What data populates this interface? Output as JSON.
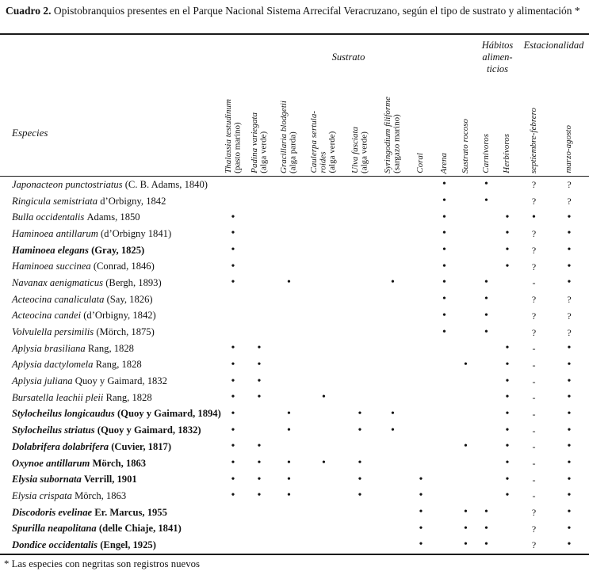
{
  "title": {
    "bold_label": "Cuadro 2.",
    "text": " Opistobranquios presentes en el Parque Nacional Sistema Arrecifal Veracruzano, según el tipo de sustrato y alimentación *"
  },
  "header": {
    "especies_label": "Especies",
    "groups": [
      {
        "id": "sustrato",
        "label": "Sustrato",
        "col_start": 2,
        "span": 9
      },
      {
        "id": "habitos",
        "label": "Hábitos\nalimen-\nticios",
        "col_start": 11,
        "span": 2
      },
      {
        "id": "estacionalidad",
        "label": "Estacionalidad",
        "col_start": 13,
        "span": 2
      }
    ],
    "columns": [
      {
        "id": "thalassia-testudinum",
        "sci_lines": [
          "Thalassia testudinum"
        ],
        "sub": "(pasto marino)"
      },
      {
        "id": "padina-variegata",
        "sci_lines": [
          "Padina variegata"
        ],
        "sub": "(alga verde)"
      },
      {
        "id": "gracillaria-blodgetii",
        "sci_lines": [
          "Gracillaria blodgetii"
        ],
        "sub": "(alga parda)"
      },
      {
        "id": "caulerpa-sertularoides",
        "sci_lines": [
          "Caulerpa sertula-",
          "roides"
        ],
        "sub": "(alga verde)"
      },
      {
        "id": "ulva-fasciata",
        "sci_lines": [
          "Ulva fasciata"
        ],
        "sub": "(alga verde)"
      },
      {
        "id": "syringodium-filiforme",
        "sci_lines": [
          "Syringodium filiforme"
        ],
        "sub": "(sargazo marino)"
      },
      {
        "id": "coral",
        "sci_lines": [
          "Coral"
        ],
        "sub": ""
      },
      {
        "id": "arena",
        "sci_lines": [
          "Arena"
        ],
        "sub": ""
      },
      {
        "id": "sustrato-rocoso",
        "sci_lines": [
          "Sustrato rocoso"
        ],
        "sub": ""
      },
      {
        "id": "carnivoros",
        "sci_lines": [
          "Carnívoros"
        ],
        "sub": ""
      },
      {
        "id": "herbivoros",
        "sci_lines": [
          "Herbívoros"
        ],
        "sub": ""
      },
      {
        "id": "septiembre-febrero",
        "sci_lines": [
          "septiembre-febrero"
        ],
        "sub": ""
      },
      {
        "id": "marzo-agosto",
        "sci_lines": [
          "marzo-agosto"
        ],
        "sub": ""
      }
    ]
  },
  "symbols": {
    "present": "•",
    "unknown": "?",
    "absent": "-"
  },
  "rows": [
    {
      "species": "Japonacteon punctostriatus",
      "authority": "(C. B. Adams, 1840)",
      "bold": false,
      "cells": [
        "",
        "",
        "",
        "",
        "",
        "",
        "",
        "•",
        "",
        "•",
        "",
        "?",
        "?"
      ]
    },
    {
      "species": "Ringicula semistriata",
      "authority": "d’Orbigny, 1842",
      "bold": false,
      "cells": [
        "",
        "",
        "",
        "",
        "",
        "",
        "",
        "•",
        "",
        "•",
        "",
        "?",
        "?"
      ]
    },
    {
      "species": "Bulla occidentalis",
      "authority": "Adams, 1850",
      "bold": false,
      "cells": [
        "•",
        "",
        "",
        "",
        "",
        "",
        "",
        "•",
        "",
        "",
        "•",
        "•",
        "•"
      ]
    },
    {
      "species": "Haminoea antillarum",
      "authority": "(d’Orbigny 1841)",
      "bold": false,
      "cells": [
        "•",
        "",
        "",
        "",
        "",
        "",
        "",
        "•",
        "",
        "",
        "•",
        "?",
        "•"
      ]
    },
    {
      "species": "Haminoea elegans",
      "authority": "(Gray, 1825)",
      "bold": true,
      "cells": [
        "•",
        "",
        "",
        "",
        "",
        "",
        "",
        "•",
        "",
        "",
        "•",
        "?",
        "•"
      ]
    },
    {
      "species": "Haminoea succinea",
      "authority": "(Conrad, 1846)",
      "bold": false,
      "cells": [
        "•",
        "",
        "",
        "",
        "",
        "",
        "",
        "•",
        "",
        "",
        "•",
        "?",
        "•"
      ]
    },
    {
      "species": "Navanax aenigmaticus",
      "authority": "(Bergh, 1893)",
      "bold": false,
      "cells": [
        "•",
        "",
        "•",
        "",
        "",
        "•",
        "",
        "•",
        "",
        "•",
        "",
        "-",
        "•"
      ]
    },
    {
      "species": "Acteocina canaliculata",
      "authority": "(Say, 1826)",
      "bold": false,
      "cells": [
        "",
        "",
        "",
        "",
        "",
        "",
        "",
        "•",
        "",
        "•",
        "",
        "?",
        "?"
      ]
    },
    {
      "species": "Acteocina candei",
      "authority": "(d’Orbigny, 1842)",
      "bold": false,
      "cells": [
        "",
        "",
        "",
        "",
        "",
        "",
        "",
        "•",
        "",
        "•",
        "",
        "?",
        "?"
      ]
    },
    {
      "species": "Volvulella persimilis",
      "authority": "(Mörch, 1875)",
      "bold": false,
      "cells": [
        "",
        "",
        "",
        "",
        "",
        "",
        "",
        "•",
        "",
        "•",
        "",
        "?",
        "?"
      ]
    },
    {
      "species": "Aplysia brasiliana",
      "authority": "Rang, 1828",
      "bold": false,
      "cells": [
        "•",
        "•",
        "",
        "",
        "",
        "",
        "",
        "",
        "",
        "",
        "•",
        "-",
        "•"
      ]
    },
    {
      "species": "Aplysia dactylomela",
      "authority": "Rang, 1828",
      "bold": false,
      "cells": [
        "•",
        "•",
        "",
        "",
        "",
        "",
        "",
        "",
        "•",
        "",
        "•",
        "-",
        "•"
      ]
    },
    {
      "species": "Aplysia juliana",
      "authority": "Quoy y Gaimard, 1832",
      "bold": false,
      "cells": [
        "•",
        "•",
        "",
        "",
        "",
        "",
        "",
        "",
        "",
        "",
        "•",
        "-",
        "•"
      ]
    },
    {
      "species": "Bursatella leachii pleii",
      "authority": "Rang, 1828",
      "bold": false,
      "cells": [
        "•",
        "•",
        "",
        "•",
        "",
        "",
        "",
        "",
        "",
        "",
        "•",
        "-",
        "•"
      ]
    },
    {
      "species": "Stylocheilus longicaudus",
      "authority": "(Quoy y Gaimard, 1894)",
      "bold": true,
      "cells": [
        "•",
        "",
        "•",
        "",
        "•",
        "•",
        "",
        "",
        "",
        "",
        "•",
        "-",
        "•"
      ]
    },
    {
      "species": "Stylocheilus striatus",
      "authority": "(Quoy y Gaimard, 1832)",
      "bold": true,
      "cells": [
        "•",
        "",
        "•",
        "",
        "•",
        "•",
        "",
        "",
        "",
        "",
        "•",
        "-",
        "•"
      ]
    },
    {
      "species": "Dolabrifera dolabrifera",
      "authority": "(Cuvier, 1817)",
      "bold": true,
      "cells": [
        "•",
        "•",
        "",
        "",
        "",
        "",
        "",
        "",
        "•",
        "",
        "•",
        "-",
        "•"
      ]
    },
    {
      "species": "Oxynoe antillarum",
      "authority": "Mörch, 1863",
      "bold": true,
      "cells": [
        "•",
        "•",
        "•",
        "•",
        "•",
        "",
        "",
        "",
        "",
        "",
        "•",
        "-",
        "•"
      ]
    },
    {
      "species": "Elysia subornata",
      "authority": "Verrill, 1901",
      "bold": true,
      "cells": [
        "•",
        "•",
        "•",
        "",
        "•",
        "",
        "•",
        "",
        "",
        "",
        "•",
        "-",
        "•"
      ]
    },
    {
      "species": "Elysia crispata",
      "authority": "Mörch, 1863",
      "bold": false,
      "cells": [
        "•",
        "•",
        "•",
        "",
        "•",
        "",
        "•",
        "",
        "",
        "",
        "•",
        "-",
        "•"
      ]
    },
    {
      "species": "Discodoris evelinae",
      "authority": "Er. Marcus, 1955",
      "bold": true,
      "cells": [
        "",
        "",
        "",
        "",
        "",
        "",
        "•",
        "",
        "•",
        "•",
        "",
        "?",
        "•"
      ]
    },
    {
      "species": "Spurilla neapolitana",
      "authority": "(delle Chiaje, 1841)",
      "bold": true,
      "cells": [
        "",
        "",
        "",
        "",
        "",
        "",
        "•",
        "",
        "•",
        "•",
        "",
        "?",
        "•"
      ]
    },
    {
      "species": "Dondice occidentalis",
      "authority": "(Engel, 1925)",
      "bold": true,
      "cells": [
        "",
        "",
        "",
        "",
        "",
        "",
        "•",
        "",
        "•",
        "•",
        "",
        "?",
        "•"
      ]
    }
  ],
  "footnote": "* Las especies con negritas son registros nuevos"
}
